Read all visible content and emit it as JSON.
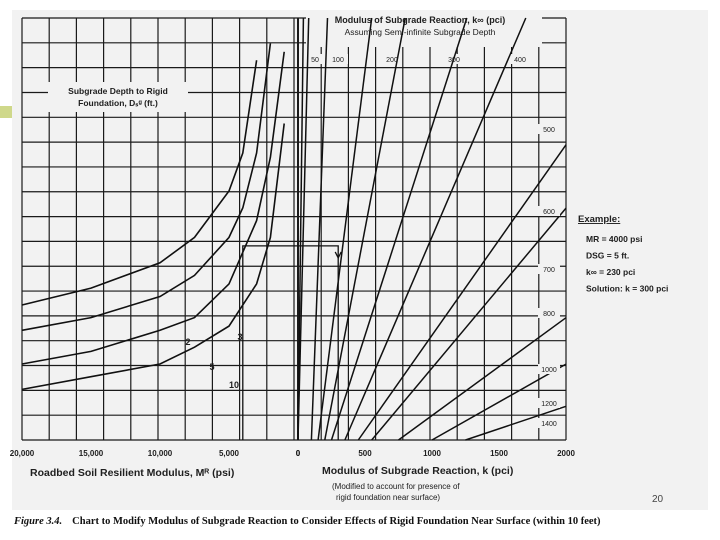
{
  "page_number": "20",
  "caption": {
    "label": "Figure 3.4.",
    "text": "Chart to Modify Modulus of Subgrade Reaction to Consider Effects of Rigid Foundation Near Surface (within 10 feet)"
  },
  "colors": {
    "paper": "#f2f2f2",
    "grid": "#1a1a1a",
    "accent": "#cfd88a"
  },
  "chart_data": {
    "type": "line",
    "title": "Modulus of Subgrade Reaction, k∞ (pci)",
    "subtitle": "Assuming Semi-infinite Subgrade Depth",
    "left_panel": {
      "xlabel": "Roadbed Soil Resilient Modulus, Mᴿ (psi)",
      "x_ticks": [
        "20,000",
        "15,000",
        "10,000",
        "5,000",
        "0"
      ],
      "xlim": [
        20000,
        0
      ],
      "family_label": "Subgrade Depth to Rigid Foundation, Dₛᵍ (ft.)",
      "series": [
        {
          "name": "2",
          "x": [
            20000,
            15000,
            10000,
            7500,
            5000,
            4000,
            3000
          ],
          "y": [
            0.68,
            0.64,
            0.58,
            0.52,
            0.41,
            0.32,
            0.1
          ]
        },
        {
          "name": "3",
          "x": [
            20000,
            15000,
            10000,
            7500,
            5000,
            4000,
            3000,
            2000
          ],
          "y": [
            0.74,
            0.71,
            0.66,
            0.61,
            0.52,
            0.45,
            0.32,
            0.06
          ]
        },
        {
          "name": "5",
          "x": [
            20000,
            15000,
            10000,
            7500,
            5000,
            3000,
            2000,
            1000
          ],
          "y": [
            0.82,
            0.79,
            0.74,
            0.71,
            0.63,
            0.48,
            0.33,
            0.08
          ]
        },
        {
          "name": "10",
          "x": [
            20000,
            15000,
            10000,
            7500,
            5000,
            3000,
            2000,
            1000
          ],
          "y": [
            0.88,
            0.85,
            0.82,
            0.78,
            0.73,
            0.63,
            0.52,
            0.25
          ]
        }
      ]
    },
    "right_panel": {
      "xlabel": "Modulus of Subgrade Reaction, k (pci)",
      "note": "(Modified to account for presence of rigid foundation near surface)",
      "x_ticks": [
        "0",
        "500",
        "1000",
        "1500",
        "2000"
      ],
      "xlim": [
        0,
        2000
      ],
      "k_inf_top_labels": [
        "50",
        "100",
        "200",
        "300",
        "400"
      ],
      "k_inf_side_labels": [
        "500",
        "600",
        "700",
        "800",
        "1000",
        "1200",
        "1400"
      ],
      "k_inf_lines": [
        {
          "k_inf": 50,
          "k_top": 40,
          "k_bottom": 0
        },
        {
          "k_inf": 100,
          "k_top": 80,
          "k_bottom": 0
        },
        {
          "k_inf": 200,
          "k_top": 220,
          "k_bottom": 100
        },
        {
          "k_inf": 300,
          "k_top": 550,
          "k_bottom": 150
        },
        {
          "k_inf": 400,
          "k_top": 800,
          "k_bottom": 200
        },
        {
          "k_inf": 500,
          "k_top": 1260,
          "k_bottom": 250
        },
        {
          "k_inf": 600,
          "k_top": 1700,
          "k_bottom": 350
        },
        {
          "k_inf": 700,
          "k_top": 2000,
          "k_bottom": 450
        },
        {
          "k_inf": 800,
          "k_top": 2000,
          "k_bottom": 550
        },
        {
          "k_inf": 1000,
          "k_top": 2000,
          "k_bottom": 750
        },
        {
          "k_inf": 1200,
          "k_top": 2000,
          "k_bottom": 1000
        },
        {
          "k_inf": 1400,
          "k_top": 2000,
          "k_bottom": 1250
        }
      ]
    },
    "example_path": {
      "MR": 4000,
      "k_final": 300,
      "y": 0.54
    },
    "example": {
      "heading": "Example:",
      "lines": [
        "MR = 4000 psi",
        "DSG = 5 ft.",
        "k∞ = 230 pci",
        "Solution: k = 300 pci"
      ]
    },
    "grid": true
  }
}
